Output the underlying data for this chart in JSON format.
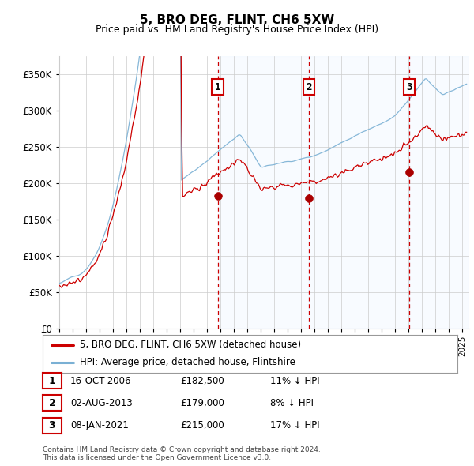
{
  "title": "5, BRO DEG, FLINT, CH6 5XW",
  "subtitle": "Price paid vs. HM Land Registry's House Price Index (HPI)",
  "ylabel_ticks": [
    "£0",
    "£50K",
    "£100K",
    "£150K",
    "£200K",
    "£250K",
    "£300K",
    "£350K"
  ],
  "ytick_values": [
    0,
    50000,
    100000,
    150000,
    200000,
    250000,
    300000,
    350000
  ],
  "ylim": [
    0,
    375000
  ],
  "xlim_start": 1995.0,
  "xlim_end": 2025.5,
  "sale_dates": [
    2006.79,
    2013.58,
    2021.03
  ],
  "sale_prices": [
    182500,
    179000,
    215000
  ],
  "sale_labels": [
    "1",
    "2",
    "3"
  ],
  "legend_line1": "5, BRO DEG, FLINT, CH6 5XW (detached house)",
  "legend_line2": "HPI: Average price, detached house, Flintshire",
  "table_rows": [
    {
      "num": "1",
      "date": "16-OCT-2006",
      "price": "£182,500",
      "pct": "11% ↓ HPI"
    },
    {
      "num": "2",
      "date": "02-AUG-2013",
      "price": "£179,000",
      "pct": "8% ↓ HPI"
    },
    {
      "num": "3",
      "date": "08-JAN-2021",
      "price": "£215,000",
      "pct": "17% ↓ HPI"
    }
  ],
  "footer": "Contains HM Land Registry data © Crown copyright and database right 2024.\nThis data is licensed under the Open Government Licence v3.0.",
  "hpi_color": "#7ab0d4",
  "sale_line_color": "#cc0000",
  "sale_marker_color": "#aa0000",
  "vline_color": "#cc0000",
  "shading_color": "#ddeeff",
  "box_color": "#cc0000",
  "background_color": "#ffffff",
  "grid_color": "#cccccc",
  "title_fontsize": 11,
  "subtitle_fontsize": 9
}
